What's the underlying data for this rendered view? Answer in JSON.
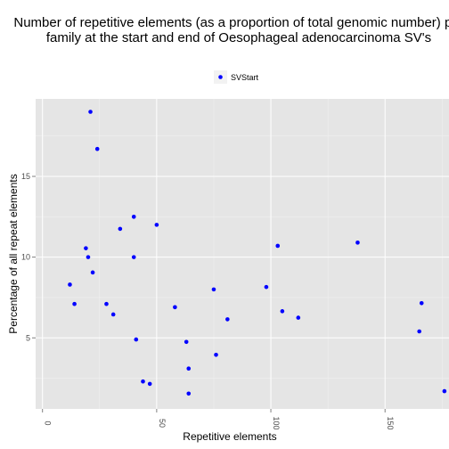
{
  "chart_data": {
    "type": "scatter",
    "title": [
      "Number of repetitive elements (as a proportion of total genomic number) per",
      "family at the start and end of Oesophageal adenocarcinoma SV's"
    ],
    "xlabel": "Repetitive elements",
    "ylabel": "Percentage of all repeat elements",
    "xlim": [
      -3,
      178
    ],
    "ylim": [
      0.6,
      19.8
    ],
    "xticks": [
      0,
      50,
      100,
      150
    ],
    "yticks": [
      5,
      10,
      15
    ],
    "grid": true,
    "legend_position": "top",
    "series": [
      {
        "name": "SVStart",
        "color": "#0000ff",
        "points": [
          [
            21,
            19.0
          ],
          [
            24,
            16.7
          ],
          [
            40,
            12.5
          ],
          [
            50,
            12.0
          ],
          [
            34,
            11.75
          ],
          [
            19,
            10.55
          ],
          [
            103,
            10.7
          ],
          [
            138,
            10.9
          ],
          [
            20,
            10.0
          ],
          [
            40,
            10.0
          ],
          [
            22,
            9.05
          ],
          [
            12,
            8.3
          ],
          [
            75,
            8.0
          ],
          [
            98,
            8.15
          ],
          [
            14,
            7.1
          ],
          [
            28,
            7.1
          ],
          [
            58,
            6.9
          ],
          [
            166,
            7.15
          ],
          [
            105,
            6.65
          ],
          [
            31,
            6.45
          ],
          [
            81,
            6.15
          ],
          [
            112,
            6.25
          ],
          [
            165,
            5.4
          ],
          [
            41,
            4.9
          ],
          [
            63,
            4.75
          ],
          [
            76,
            3.95
          ],
          [
            64,
            3.1
          ],
          [
            44,
            2.3
          ],
          [
            47,
            2.15
          ],
          [
            64,
            1.55
          ],
          [
            176,
            1.7
          ]
        ]
      }
    ]
  }
}
